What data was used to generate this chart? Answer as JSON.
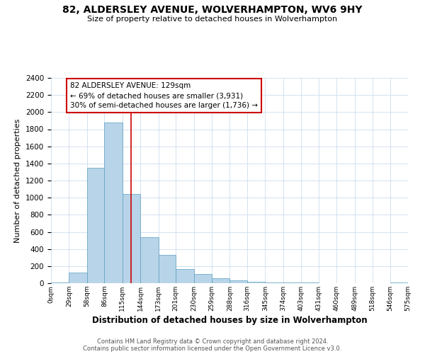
{
  "title": "82, ALDERSLEY AVENUE, WOLVERHAMPTON, WV6 9HY",
  "subtitle": "Size of property relative to detached houses in Wolverhampton",
  "xlabel": "Distribution of detached houses by size in Wolverhampton",
  "ylabel": "Number of detached properties",
  "bar_color": "#b8d4e8",
  "bar_edge_color": "#5a9fc0",
  "background_color": "#ffffff",
  "grid_color": "#ccddee",
  "bin_edges": [
    0,
    29,
    58,
    86,
    115,
    144,
    173,
    201,
    230,
    259,
    288,
    316,
    345,
    374,
    403,
    431,
    460,
    489,
    518,
    546,
    575
  ],
  "bin_labels": [
    "0sqm",
    "29sqm",
    "58sqm",
    "86sqm",
    "115sqm",
    "144sqm",
    "173sqm",
    "201sqm",
    "230sqm",
    "259sqm",
    "288sqm",
    "316sqm",
    "345sqm",
    "374sqm",
    "403sqm",
    "431sqm",
    "460sqm",
    "489sqm",
    "518sqm",
    "546sqm",
    "575sqm"
  ],
  "bar_heights": [
    5,
    125,
    1350,
    1880,
    1045,
    540,
    335,
    165,
    105,
    60,
    30,
    20,
    10,
    5,
    5,
    1,
    3,
    1,
    1,
    10
  ],
  "property_line_x": 129,
  "property_line_color": "#cc0000",
  "annotation_text": "82 ALDERSLEY AVENUE: 129sqm\n← 69% of detached houses are smaller (3,931)\n30% of semi-detached houses are larger (1,736) →",
  "annotation_box_color": "#cc0000",
  "ylim": [
    0,
    2400
  ],
  "yticks": [
    0,
    200,
    400,
    600,
    800,
    1000,
    1200,
    1400,
    1600,
    1800,
    2000,
    2200,
    2400
  ],
  "footer_line1": "Contains HM Land Registry data © Crown copyright and database right 2024.",
  "footer_line2": "Contains public sector information licensed under the Open Government Licence v3.0."
}
